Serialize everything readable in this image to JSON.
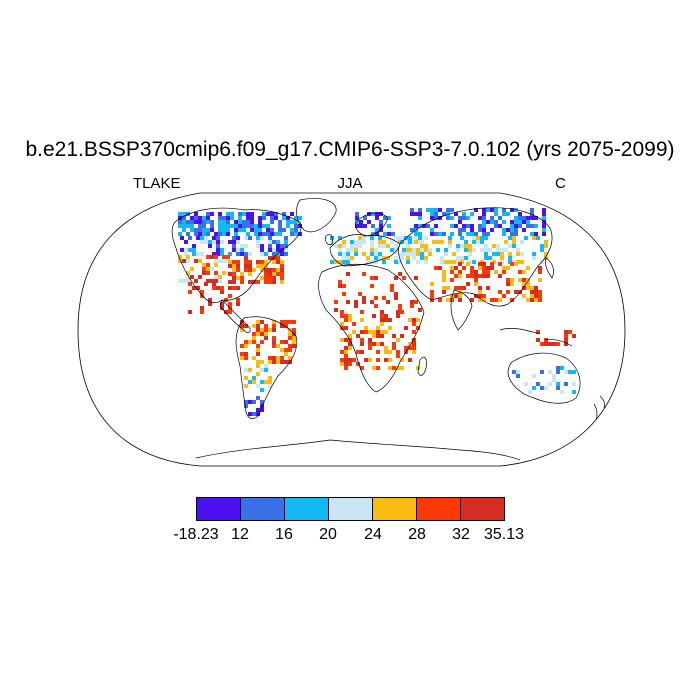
{
  "title": "b.e21.BSSP370cmip6.f09_g17.CMIP6-SSP3-7.0.102 (yrs 2075-2099)",
  "variable": "TLAKE",
  "season": "JJA",
  "units": "C",
  "colorbar": {
    "colors": [
      "#4b12ef",
      "#3a70e9",
      "#12b9f3",
      "#c8e6f6",
      "#fbbb10",
      "#fb3a08",
      "#d62d22"
    ],
    "labels": [
      "-18.23",
      "12",
      "16",
      "20",
      "24",
      "28",
      "32",
      "35.13"
    ]
  },
  "map": {
    "projection": "robinson",
    "ocean_color": "#ffffff",
    "coastline_color": "#000000"
  }
}
